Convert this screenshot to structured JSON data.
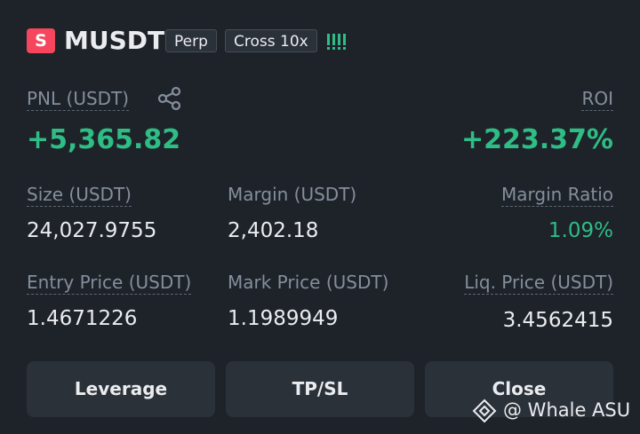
{
  "header": {
    "badge": "S",
    "symbol": "MUSDT",
    "tags": [
      "Perp",
      "Cross 10x"
    ]
  },
  "pnl": {
    "label": "PNL (USDT)",
    "value": "+5,365.82"
  },
  "roi": {
    "label": "ROI",
    "value": "+223.37%"
  },
  "fields": [
    {
      "label": "Size (USDT)",
      "value": "24,027.9755"
    },
    {
      "label": "Margin (USDT)",
      "value": "2,402.18"
    },
    {
      "label": "Margin Ratio",
      "value": "1.09%"
    },
    {
      "label": "Entry Price (USDT)",
      "value": "1.4671226"
    },
    {
      "label": "Mark Price (USDT)",
      "value": "1.1989949"
    },
    {
      "label": "Liq. Price (USDT)",
      "value": "3.4562415"
    }
  ],
  "buttons": [
    "Leverage",
    "TP/SL",
    "Close"
  ],
  "watermark": "@ Whale ASU"
}
